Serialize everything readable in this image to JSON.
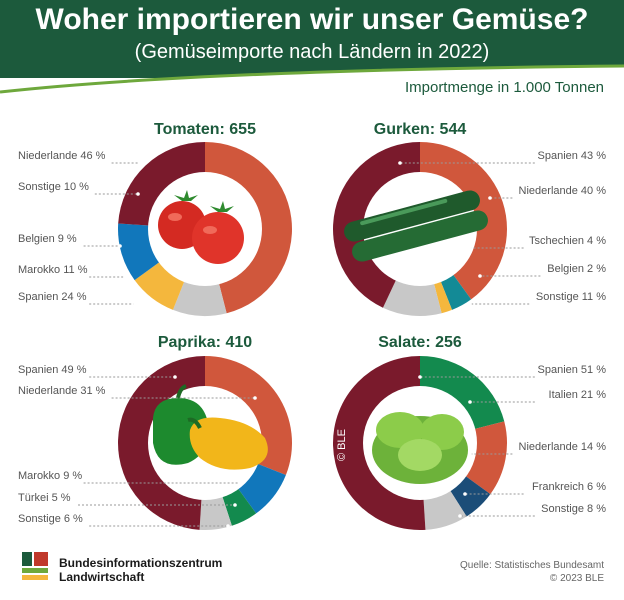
{
  "header": {
    "title": "Woher importieren wir unser Gemüse?",
    "subtitle": "(Gemüseimporte nach Ländern in 2022)"
  },
  "unit_label": "Importmenge in 1.000 Tonnen",
  "colors": {
    "header_green": "#1c5a3c",
    "maroon": "#7a1a2c",
    "orange": "#d0573c",
    "blue": "#1177bb",
    "yellow": "#f4b73d",
    "grey": "#c8c8c8",
    "teal": "#138a96",
    "dark_green": "#138a4e",
    "navy": "#1b4d78"
  },
  "chart_data": [
    {
      "type": "pie",
      "title": "Tomaten: 655",
      "slices": [
        {
          "label": "Niederlande 46 %",
          "value": 46,
          "color": "#d0573c"
        },
        {
          "label": "Sonstige 10 %",
          "value": 10,
          "color": "#c8c8c8"
        },
        {
          "label": "Belgien 9 %",
          "value": 9,
          "color": "#f4b73d"
        },
        {
          "label": "Marokko 11 %",
          "value": 11,
          "color": "#1177bb"
        },
        {
          "label": "Spanien 24 %",
          "value": 24,
          "color": "#7a1a2c"
        }
      ]
    },
    {
      "type": "pie",
      "title": "Gurken: 544",
      "slices": [
        {
          "label": "Niederlande 40 %",
          "value": 40,
          "color": "#d0573c"
        },
        {
          "label": "Tschechien 4 %",
          "value": 4,
          "color": "#138a96"
        },
        {
          "label": "Belgien 2 %",
          "value": 2,
          "color": "#f4b73d"
        },
        {
          "label": "Sonstige 11 %",
          "value": 11,
          "color": "#c8c8c8"
        },
        {
          "label": "Spanien 43 %",
          "value": 43,
          "color": "#7a1a2c"
        }
      ]
    },
    {
      "type": "pie",
      "title": "Paprika: 410",
      "slices": [
        {
          "label": "Niederlande 31 %",
          "value": 31,
          "color": "#d0573c"
        },
        {
          "label": "Marokko 9 %",
          "value": 9,
          "color": "#1177bb"
        },
        {
          "label": "Türkei 5 %",
          "value": 5,
          "color": "#138a4e"
        },
        {
          "label": "Sonstige 6 %",
          "value": 6,
          "color": "#c8c8c8"
        },
        {
          "label": "Spanien 49 %",
          "value": 49,
          "color": "#7a1a2c"
        }
      ]
    },
    {
      "type": "pie",
      "title": "Salate: 256",
      "slices": [
        {
          "label": "Italien 21 %",
          "value": 21,
          "color": "#138a4e"
        },
        {
          "label": "Niederlande 14 %",
          "value": 14,
          "color": "#d0573c"
        },
        {
          "label": "Frankreich 6 %",
          "value": 6,
          "color": "#1b4d78"
        },
        {
          "label": "Sonstige 8 %",
          "value": 8,
          "color": "#c8c8c8"
        },
        {
          "label": "Spanien 51 %",
          "value": 51,
          "color": "#7a1a2c"
        }
      ]
    }
  ],
  "watermark": "© BLE",
  "footer": {
    "org_line1": "Bundesinformationszentrum",
    "org_line2": "Landwirtschaft",
    "source": "Quelle: Statistisches Bundesamt",
    "copyright": "© 2023 BLE"
  }
}
